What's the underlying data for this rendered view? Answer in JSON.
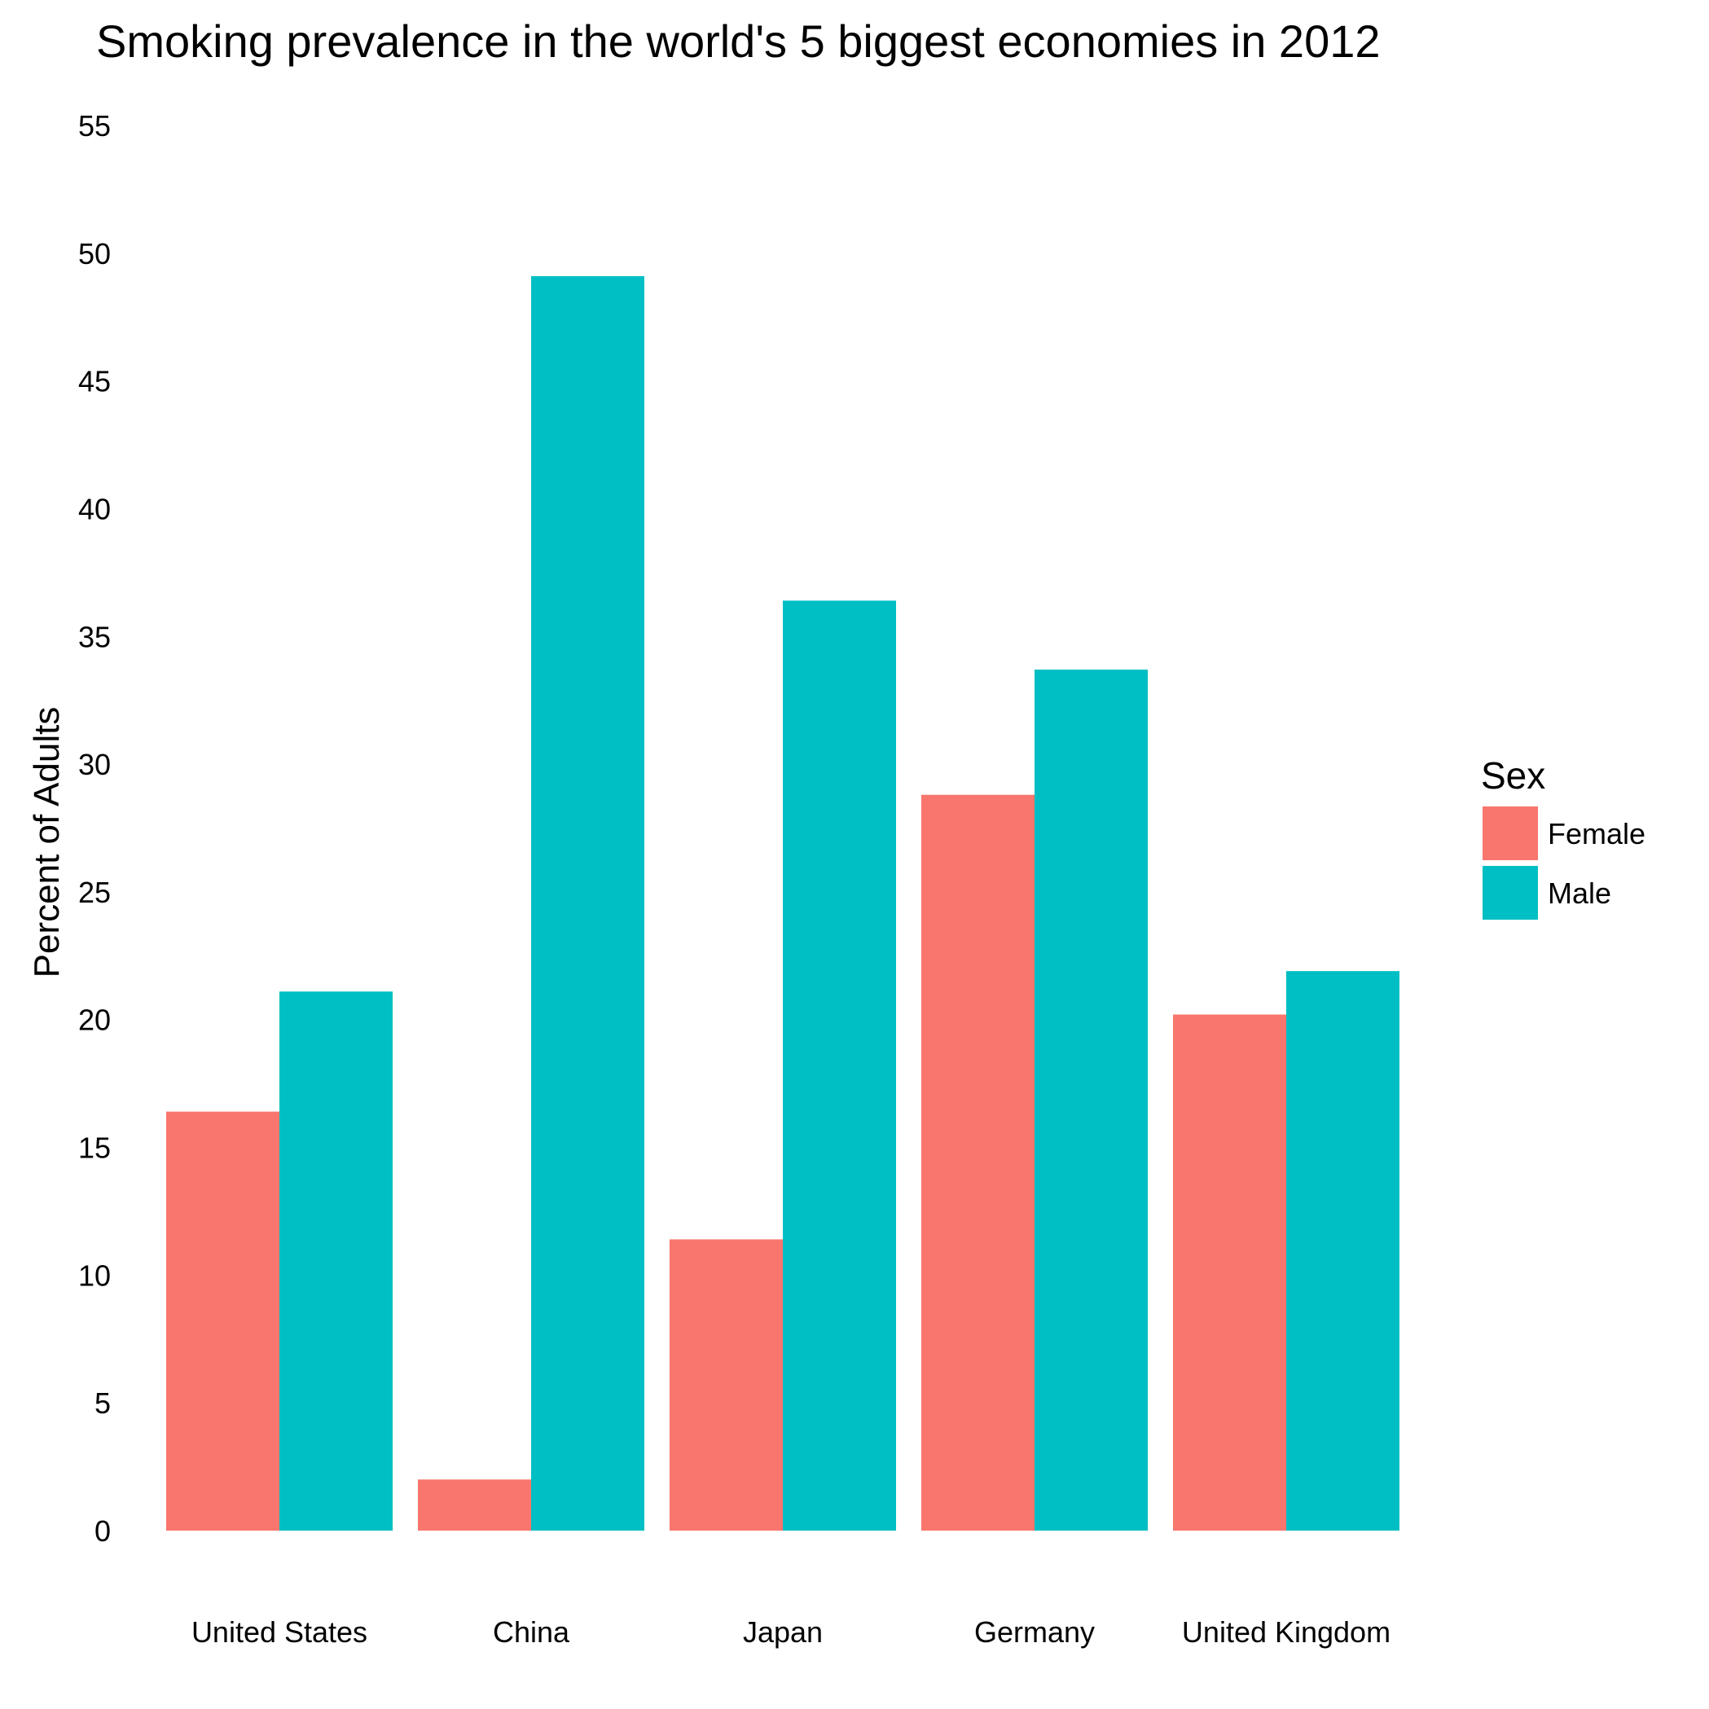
{
  "chart_data": {
    "type": "bar",
    "title": "Smoking prevalence in the world's 5 biggest economies in 2012",
    "xlabel": "",
    "ylabel": "Percent of Adults",
    "categories": [
      "United States",
      "China",
      "Japan",
      "Germany",
      "United Kingdom"
    ],
    "series": [
      {
        "name": "Female",
        "color": "#F8766D",
        "values": [
          16.4,
          2.0,
          11.4,
          28.8,
          20.2
        ]
      },
      {
        "name": "Male",
        "color": "#00BFC4",
        "values": [
          21.1,
          49.1,
          36.4,
          33.7,
          21.9
        ]
      }
    ],
    "ylim": [
      0,
      55
    ],
    "yticks": [
      0,
      5,
      10,
      15,
      20,
      25,
      30,
      35,
      40,
      45,
      50,
      55
    ],
    "grid": false,
    "legend": {
      "title": "Sex",
      "position": "right"
    }
  }
}
